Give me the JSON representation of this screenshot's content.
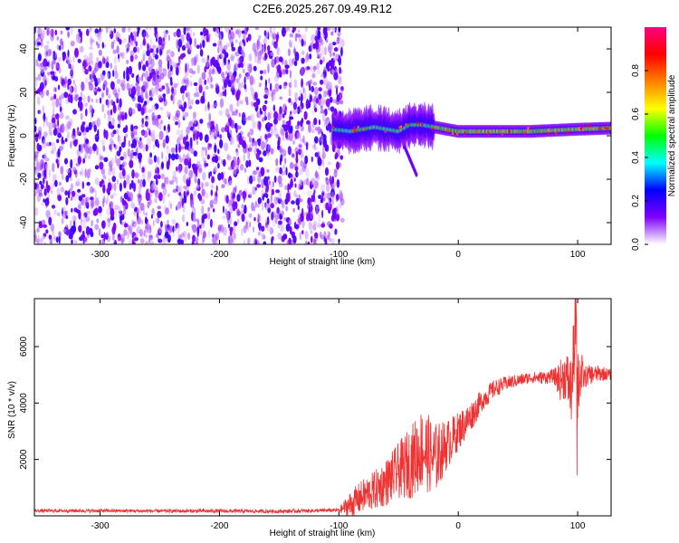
{
  "title": "C2E6.2025.267.09.49.R12",
  "chart_data": [
    {
      "type": "heatmap",
      "name": "spectrogram",
      "xlabel": "Height of straight line (km)",
      "ylabel": "Frequency (Hz)",
      "xlim": [
        -355,
        128
      ],
      "ylim": [
        -50,
        50
      ],
      "x_ticks": [
        -300,
        -200,
        -100,
        0,
        100
      ],
      "x_tick_labels": [
        "-300",
        "-200",
        "-100",
        "0",
        "100"
      ],
      "y_ticks": [
        -40,
        -20,
        0,
        20,
        40
      ],
      "y_tick_labels": [
        "-40",
        "-20",
        "0",
        "20",
        "40"
      ],
      "noise_region": {
        "x": [
          -355,
          -97
        ],
        "y": [
          -50,
          50
        ],
        "amplitude_range": [
          0.05,
          0.25
        ]
      },
      "signal_track": {
        "x_start": -105,
        "x_end": 128,
        "center_hz": [
          [
            -105,
            3
          ],
          [
            -90,
            2
          ],
          [
            -80,
            3
          ],
          [
            -70,
            4
          ],
          [
            -60,
            3
          ],
          [
            -50,
            2
          ],
          [
            -40,
            5
          ],
          [
            -30,
            5
          ],
          [
            -20,
            4
          ],
          [
            -10,
            3
          ],
          [
            0,
            2
          ],
          [
            20,
            2
          ],
          [
            40,
            2
          ],
          [
            60,
            2
          ],
          [
            80,
            2.5
          ],
          [
            100,
            3
          ],
          [
            128,
            3.5
          ]
        ],
        "peak_amplitude": 0.95,
        "branch": {
          "x": [
            -45,
            -35
          ],
          "center_hz": [
            -5,
            -18
          ]
        }
      },
      "colorbar": {
        "label": "Normalized spectral amplitude",
        "range": [
          0,
          1
        ],
        "ticks": [
          0.0,
          0.2,
          0.4,
          0.6,
          0.8
        ],
        "tick_labels": [
          "0.0",
          "0.2",
          "0.4",
          "0.6",
          "0.8"
        ],
        "colors": [
          "#ffffff",
          "#8000ff",
          "#0000ff",
          "#00ffff",
          "#00ff00",
          "#ffff00",
          "#ff8000",
          "#ff0000",
          "#ff0080"
        ]
      }
    },
    {
      "type": "line",
      "name": "snr",
      "xlabel": "Height of straight line (km)",
      "ylabel": "SNR (10 * v/v)",
      "xlim": [
        -355,
        128
      ],
      "ylim": [
        0,
        7700
      ],
      "x_ticks": [
        -300,
        -200,
        -100,
        0,
        100
      ],
      "x_tick_labels": [
        "-300",
        "-200",
        "-100",
        "0",
        "100"
      ],
      "y_ticks": [
        2000,
        4000,
        6000
      ],
      "y_tick_labels": [
        "2000",
        "4000",
        "6000"
      ],
      "color": "#ee3333",
      "series": [
        {
          "name": "SNR",
          "x": [
            -355,
            -300,
            -250,
            -200,
            -150,
            -100,
            -90,
            -80,
            -70,
            -60,
            -50,
            -40,
            -30,
            -20,
            -10,
            0,
            10,
            20,
            30,
            40,
            50,
            60,
            70,
            80,
            85,
            90,
            95,
            98,
            100,
            105,
            110,
            120,
            128
          ],
          "y": [
            180,
            180,
            170,
            170,
            160,
            200,
            400,
            700,
            900,
            1200,
            1600,
            1900,
            2400,
            2000,
            2500,
            3000,
            3500,
            4100,
            4500,
            4700,
            4800,
            4900,
            4900,
            4950,
            4800,
            5000,
            4400,
            6800,
            5100,
            4900,
            5000,
            5050,
            5000
          ],
          "noise_envelope": [
            [
              -355,
              60
            ],
            [
              -100,
              70
            ],
            [
              -90,
              500
            ],
            [
              -70,
              700
            ],
            [
              -50,
              1000
            ],
            [
              -40,
              1300
            ],
            [
              -30,
              1500
            ],
            [
              -20,
              1300
            ],
            [
              -10,
              900
            ],
            [
              0,
              700
            ],
            [
              20,
              400
            ],
            [
              40,
              250
            ],
            [
              60,
              200
            ],
            [
              80,
              250
            ],
            [
              85,
              700
            ],
            [
              90,
              900
            ],
            [
              95,
              1200
            ],
            [
              100,
              1800
            ],
            [
              105,
              400
            ],
            [
              128,
              200
            ]
          ]
        }
      ]
    }
  ]
}
